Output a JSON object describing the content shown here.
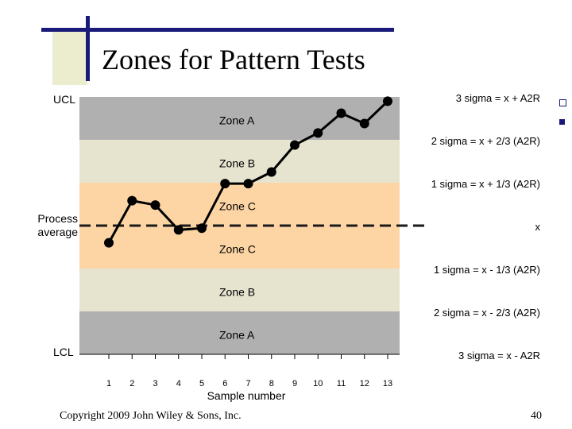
{
  "title": "Zones for Pattern Tests",
  "copyright": "Copyright 2009 John Wiley & Sons, Inc.",
  "page_number": "40",
  "colors": {
    "zone_a": "#b0b0b0",
    "zone_b": "#e6e4cf",
    "zone_c": "#fdd5a5",
    "line": "#000000",
    "title_bar": "#1a1a7a",
    "title_box": "#ececcf"
  },
  "chart_data": {
    "type": "line",
    "xlabel": "Sample number",
    "x": [
      1,
      2,
      3,
      4,
      5,
      6,
      7,
      8,
      9,
      10,
      11,
      12,
      13
    ],
    "series": [
      {
        "values": [
          -0.4,
          0.58,
          0.48,
          -0.1,
          -0.06,
          0.98,
          0.98,
          1.25,
          1.88,
          2.16,
          2.62,
          2.38,
          2.9
        ]
      }
    ],
    "ylim": [
      -3,
      3
    ],
    "left_labels": {
      "ucl": "UCL",
      "center": "Process\naverage",
      "lcl": "LCL"
    },
    "zones": [
      {
        "label": "Zone A",
        "from": 2,
        "to": 3
      },
      {
        "label": "Zone B",
        "from": 1,
        "to": 2
      },
      {
        "label": "Zone C",
        "from": 0,
        "to": 1
      },
      {
        "label": "Zone C",
        "from": -1,
        "to": 0
      },
      {
        "label": "Zone B",
        "from": -2,
        "to": -1
      },
      {
        "label": "Zone A",
        "from": -3,
        "to": -2
      }
    ],
    "limit_labels": [
      {
        "level": 3,
        "text": "3 sigma = x + A2R"
      },
      {
        "level": 2,
        "text": "2 sigma = x + 2/3 (A2R)"
      },
      {
        "level": 1,
        "text": "1 sigma = x + 1/3 (A2R)"
      },
      {
        "level": 0,
        "text": "x"
      },
      {
        "level": -1,
        "text": "1 sigma = x - 1/3 (A2R)"
      },
      {
        "level": -2,
        "text": "2 sigma = x - 2/3 (A2R)"
      },
      {
        "level": -3,
        "text": "3 sigma = x - A2R"
      }
    ]
  }
}
